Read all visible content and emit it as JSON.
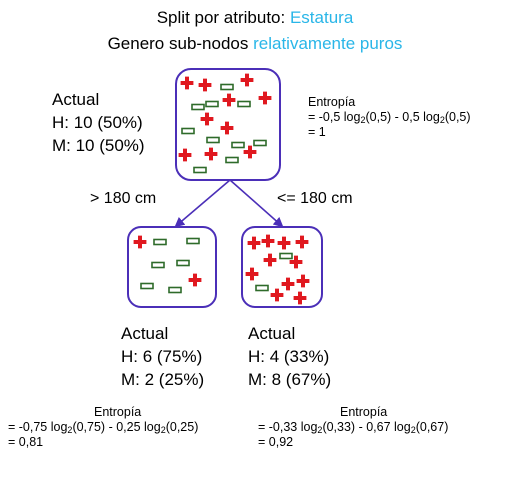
{
  "title": {
    "line1_prefix": "Split por atributo: ",
    "line1_accent": "Estatura",
    "line2_prefix": "Genero sub-nodos ",
    "line2_accent": "relativamente puros"
  },
  "root": {
    "heading": "Actual",
    "h_line": "H: 10  (50%)",
    "m_line": "M: 10  (50%)",
    "entropy": {
      "label": "Entropía",
      "formula": [
        "= -0,5 log",
        "2",
        "(0,5) - 0,5 log",
        "2",
        "(0,5)"
      ],
      "result": "= 1"
    }
  },
  "branches": {
    "left_label": "> 180 cm",
    "right_label": "<= 180 cm"
  },
  "left_node": {
    "heading": "Actual",
    "h_line": "H: 6  (75%)",
    "m_line": "M: 2  (25%)",
    "entropy": {
      "label": "Entropía",
      "formula": [
        "= -0,75 log",
        "2",
        "(0,75) - 0,25 log",
        "2",
        "(0,25)"
      ],
      "result": "= 0,81"
    }
  },
  "right_node": {
    "heading": "Actual",
    "h_line": "H: 4  (33%)",
    "m_line": "M: 8  (67%)",
    "entropy": {
      "label": "Entropía",
      "formula": [
        "= -0,33 log",
        "2",
        "(0,33) - 0,67 log",
        "2",
        "(0,67)"
      ],
      "result": "= 0,92"
    }
  },
  "colors": {
    "node_border": "#4b2fb8",
    "arrow": "#4b2fb8",
    "cross_fill": "#e0181f",
    "cross_stroke": "#ffffff",
    "rect_stroke": "#2e6b2a",
    "accent": "#29b6e8"
  },
  "icons": {
    "male_symbol": "red-cross-icon",
    "female_symbol": "green-rectangle-icon"
  }
}
